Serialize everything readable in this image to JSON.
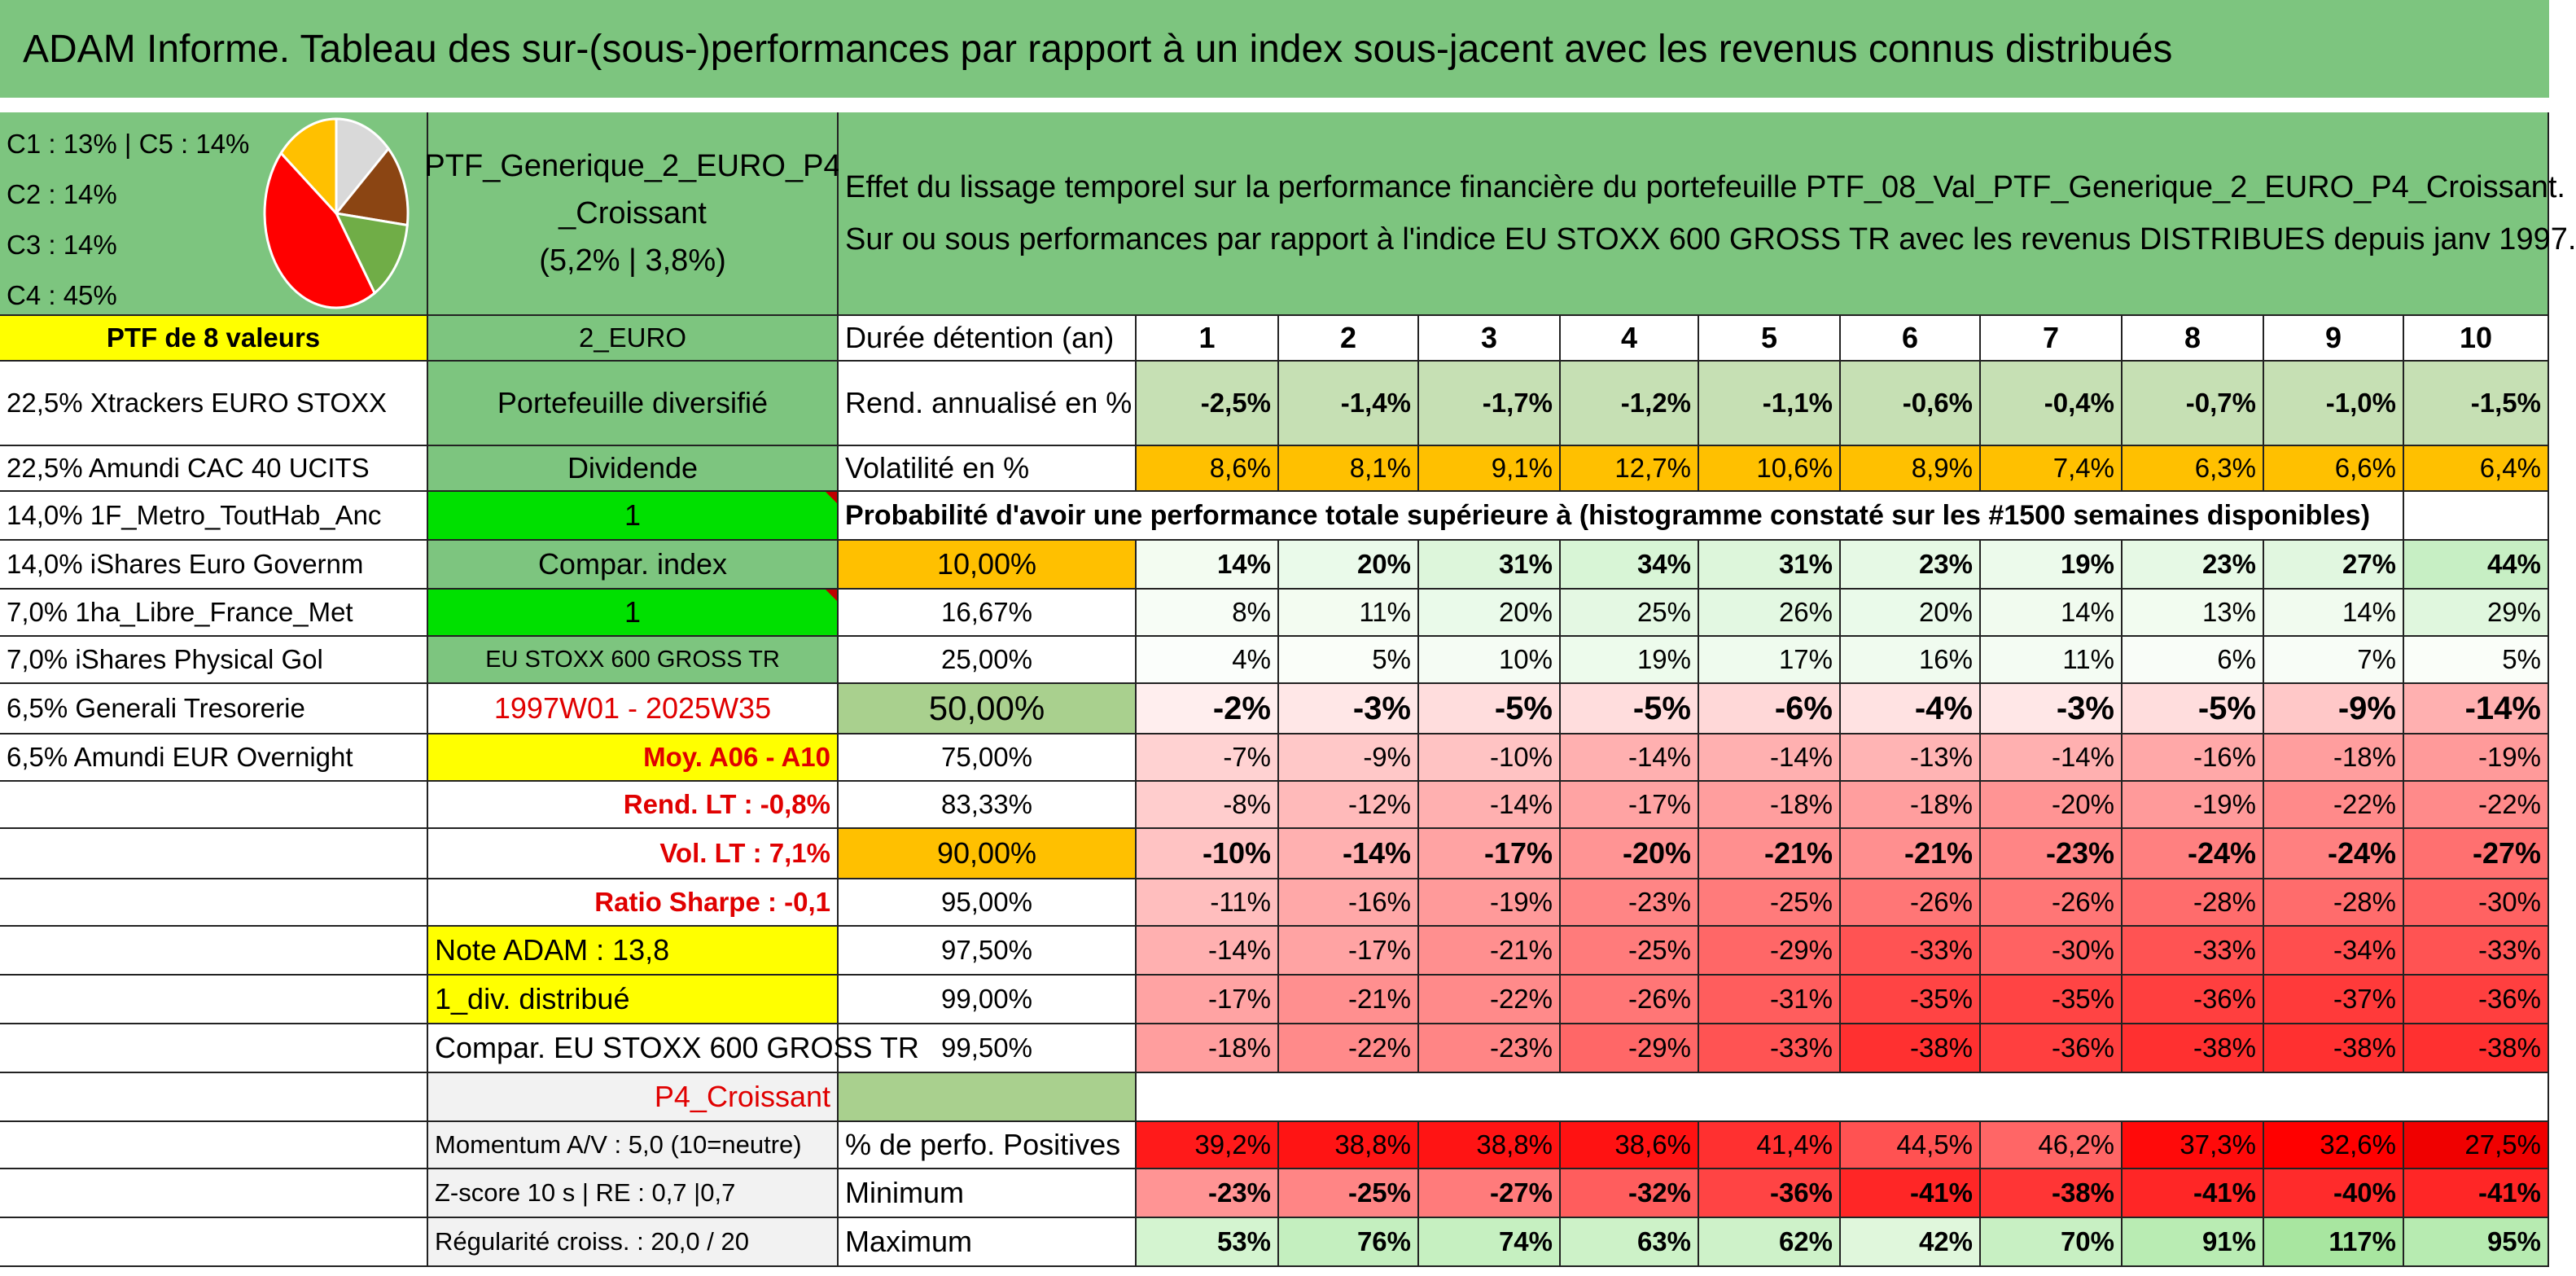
{
  "title": "ADAM Informe. Tableau des sur-(sous-)performances par rapport à un index sous-jacent avec les revenus connus distribués",
  "composition": {
    "lines": [
      "C1 : 13% | C5 : 14%",
      "C2 : 14%",
      "C3 : 14%",
      "C4 : 45%"
    ],
    "pie": [
      {
        "label": "C1",
        "value": 13,
        "color": "#d9d9d9"
      },
      {
        "label": "C5",
        "value": 14,
        "color": "#8b4513"
      },
      {
        "label": "C2",
        "value": 14,
        "color": "#70ad47"
      },
      {
        "label": "C4",
        "value": 45,
        "color": "#ff0000"
      },
      {
        "label": "C3",
        "value": 14,
        "color": "#ffc000"
      }
    ]
  },
  "portfolio": {
    "name_line1": "PTF_Generique_2_EURO_P4",
    "name_line2": "_Croissant",
    "perf": "(5,2% | 3,8%)"
  },
  "description": {
    "line1": "Effet du lissage temporel sur la performance financière du portefeuille PTF_08_Val_PTF_Generique_2_EURO_P4_Croissant.",
    "line2": "Sur ou sous performances par rapport à l'indice EU STOXX 600 GROSS TR avec les revenus DISTRIBUES depuis janv 1997."
  },
  "holdings_header": "PTF de 8 valeurs",
  "holdings": [
    "22,5% Xtrackers EURO STOXX",
    "22,5% Amundi CAC 40 UCITS",
    "14,0% 1F_Metro_ToutHab_Anc",
    "14,0% iShares Euro Governm",
    "7,0% 1ha_Libre_France_Met",
    "7,0% iShares Physical Gol",
    "6,5% Generali Tresorerie",
    "6,5% Amundi EUR Overnight"
  ],
  "info": {
    "currency": "2_EURO",
    "type": "Portefeuille diversifié",
    "dividend": "Dividende",
    "one_a": "1",
    "compar_index": "Compar. index",
    "one_b": "1",
    "index_name": "EU STOXX 600 GROSS TR",
    "period": "1997W01 - 2025W35",
    "moy": "Moy. A06 - A10",
    "rend_lt": "Rend. LT : -0,8%",
    "vol_lt": "Vol. LT : 7,1%",
    "sharpe": "Ratio Sharpe : -0,1",
    "note": "Note ADAM : 13,8",
    "div": "1_div. distribué",
    "compar": "Compar. EU STOXX 600 GROSS TR",
    "profile": "P4_Croissant",
    "momentum": "Momentum A/V : 5,0 (10=neutre)",
    "zscore": "Z-score 10 s | RE : 0,7 |0,7",
    "regularite": "Régularité croiss. : 20,0 / 20"
  },
  "table": {
    "duration_label": "Durée détention (an)",
    "years": [
      "1",
      "2",
      "3",
      "4",
      "5",
      "6",
      "7",
      "8",
      "9",
      "10"
    ],
    "rend_label": "Rend. annualisé en %",
    "rend": [
      "-2,5%",
      "-1,4%",
      "-1,7%",
      "-1,2%",
      "-1,1%",
      "-0,6%",
      "-0,4%",
      "-0,7%",
      "-1,0%",
      "-1,5%"
    ],
    "vol_label": "Volatilité en %",
    "vol": [
      "8,6%",
      "8,1%",
      "9,1%",
      "12,7%",
      "10,6%",
      "8,9%",
      "7,4%",
      "6,3%",
      "6,6%",
      "6,4%"
    ],
    "prob_label": "Probabilité d'avoir une performance totale supérieure à (histogramme constaté sur les #1500 semaines disponibles)",
    "quantiles": [
      {
        "p": "10,00%",
        "v": [
          "14%",
          "20%",
          "31%",
          "34%",
          "31%",
          "23%",
          "19%",
          "23%",
          "27%",
          "44%"
        ]
      },
      {
        "p": "16,67%",
        "v": [
          "8%",
          "11%",
          "20%",
          "25%",
          "26%",
          "20%",
          "14%",
          "13%",
          "14%",
          "29%"
        ]
      },
      {
        "p": "25,00%",
        "v": [
          "4%",
          "5%",
          "10%",
          "19%",
          "17%",
          "16%",
          "11%",
          "6%",
          "7%",
          "5%"
        ]
      },
      {
        "p": "50,00%",
        "v": [
          "-2%",
          "-3%",
          "-5%",
          "-5%",
          "-6%",
          "-4%",
          "-3%",
          "-5%",
          "-9%",
          "-14%"
        ]
      },
      {
        "p": "75,00%",
        "v": [
          "-7%",
          "-9%",
          "-10%",
          "-14%",
          "-14%",
          "-13%",
          "-14%",
          "-16%",
          "-18%",
          "-19%"
        ]
      },
      {
        "p": "83,33%",
        "v": [
          "-8%",
          "-12%",
          "-14%",
          "-17%",
          "-18%",
          "-18%",
          "-20%",
          "-19%",
          "-22%",
          "-22%"
        ]
      },
      {
        "p": "90,00%",
        "v": [
          "-10%",
          "-14%",
          "-17%",
          "-20%",
          "-21%",
          "-21%",
          "-23%",
          "-24%",
          "-24%",
          "-27%"
        ]
      },
      {
        "p": "95,00%",
        "v": [
          "-11%",
          "-16%",
          "-19%",
          "-23%",
          "-25%",
          "-26%",
          "-26%",
          "-28%",
          "-28%",
          "-30%"
        ]
      },
      {
        "p": "97,50%",
        "v": [
          "-14%",
          "-17%",
          "-21%",
          "-25%",
          "-29%",
          "-33%",
          "-30%",
          "-33%",
          "-34%",
          "-33%"
        ]
      },
      {
        "p": "99,00%",
        "v": [
          "-17%",
          "-21%",
          "-22%",
          "-26%",
          "-31%",
          "-35%",
          "-35%",
          "-36%",
          "-37%",
          "-36%"
        ]
      },
      {
        "p": "99,50%",
        "v": [
          "-18%",
          "-22%",
          "-23%",
          "-29%",
          "-33%",
          "-38%",
          "-36%",
          "-38%",
          "-38%",
          "-38%"
        ]
      }
    ],
    "pos_label": "% de perfo. Positives",
    "pos": [
      "39,2%",
      "38,8%",
      "38,8%",
      "38,6%",
      "41,4%",
      "44,5%",
      "46,2%",
      "37,3%",
      "32,6%",
      "27,5%"
    ],
    "min_label": "Minimum",
    "min": [
      "-23%",
      "-25%",
      "-27%",
      "-32%",
      "-36%",
      "-41%",
      "-38%",
      "-41%",
      "-40%",
      "-41%"
    ],
    "max_label": "Maximum",
    "max": [
      "53%",
      "76%",
      "74%",
      "63%",
      "62%",
      "42%",
      "70%",
      "91%",
      "117%",
      "95%"
    ]
  },
  "colors": {
    "header_green": "#7dc57f",
    "yellow": "#ffff00",
    "orange": "#ffc000",
    "bright_green": "#00e000",
    "red_text": "#e00000"
  }
}
